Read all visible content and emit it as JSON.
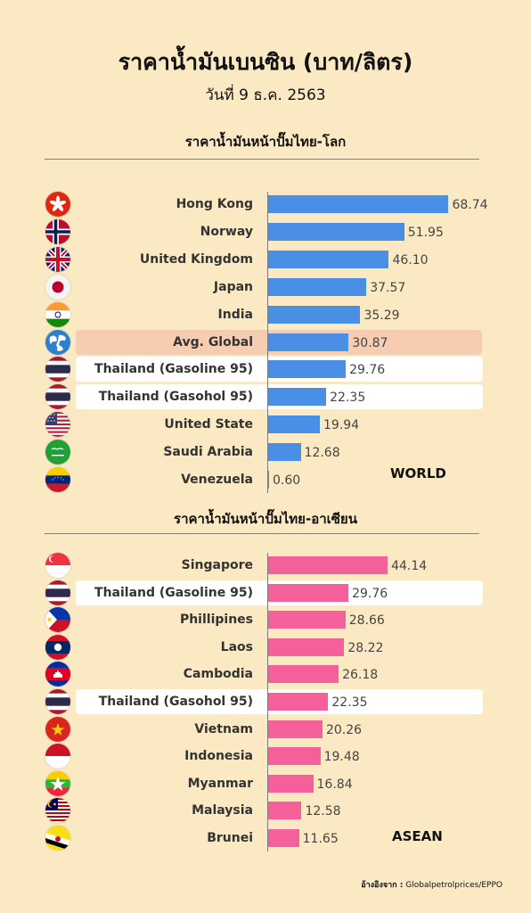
{
  "header": {
    "title": "ราคาน้ำมันเบนซิน (บาท/ลิตร)",
    "date": "วันที่ 9 ธ.ค. 2563"
  },
  "source": {
    "prefix": "อ้างอิงจาก :",
    "text": "Globalpetrolprices/EPPO"
  },
  "colors": {
    "world_bar": "#4a8fe6",
    "asean_bar": "#f5609a",
    "avg_highlight": "#f7cdb2",
    "thai_highlight": "#ffffff",
    "background": "#fbe9c3"
  },
  "chart_data": [
    {
      "type": "bar",
      "orientation": "horizontal",
      "title": "ราคาน้ำมันหน้าปั๊มไทย-โลก",
      "tag": "WORLD",
      "categories": [
        "Hong Kong",
        "Norway",
        "United Kingdom",
        "Japan",
        "India",
        "Avg. Global",
        "Thailand (Gasoline 95)",
        "Thailand (Gasohol 95)",
        "United State",
        "Saudi Arabia",
        "Venezuela"
      ],
      "values": [
        68.74,
        51.95,
        46.1,
        37.57,
        35.29,
        30.87,
        29.76,
        22.35,
        19.94,
        12.68,
        0.6
      ],
      "value_labels": [
        "68.74",
        "51.95",
        "46.10",
        "37.57",
        "35.29",
        "30.87",
        "29.76",
        "22.35",
        "19.94",
        "12.68",
        "0.60"
      ],
      "highlight": [
        "",
        "",
        "",
        "",
        "",
        "avg",
        "thai",
        "thai",
        "",
        "",
        ""
      ],
      "flag_icons": [
        "hong-kong-flag-icon",
        "norway-flag-icon",
        "united-kingdom-flag-icon",
        "japan-flag-icon",
        "india-flag-icon",
        "globe-icon",
        "thailand-flag-icon",
        "thailand-flag-icon",
        "united-states-flag-icon",
        "saudi-arabia-flag-icon",
        "venezuela-flag-icon"
      ],
      "xlim": [
        0,
        70
      ],
      "grid": false,
      "legend": "none"
    },
    {
      "type": "bar",
      "orientation": "horizontal",
      "title": "ราคาน้ำมันหน้าปั๊มไทย-อาเซียน",
      "tag": "ASEAN",
      "categories": [
        "Singapore",
        "Thailand (Gasoline 95)",
        "Phillipines",
        "Laos",
        "Cambodia",
        "Thailand (Gasohol 95)",
        "Vietnam",
        "Indonesia",
        "Myanmar",
        "Malaysia",
        "Brunei"
      ],
      "values": [
        44.14,
        29.76,
        28.66,
        28.22,
        26.18,
        22.35,
        20.26,
        19.48,
        16.84,
        12.58,
        11.65
      ],
      "value_labels": [
        "44.14",
        "29.76",
        "28.66",
        "28.22",
        "26.18",
        "22.35",
        "20.26",
        "19.48",
        "16.84",
        "12.58",
        "11.65"
      ],
      "highlight": [
        "",
        "thai",
        "",
        "",
        "",
        "thai",
        "",
        "",
        "",
        "",
        ""
      ],
      "flag_icons": [
        "singapore-flag-icon",
        "thailand-flag-icon",
        "philippines-flag-icon",
        "laos-flag-icon",
        "cambodia-flag-icon",
        "thailand-flag-icon",
        "vietnam-flag-icon",
        "indonesia-flag-icon",
        "myanmar-flag-icon",
        "malaysia-flag-icon",
        "brunei-flag-icon"
      ],
      "xlim": [
        0,
        70
      ],
      "grid": false,
      "legend": "none"
    }
  ]
}
